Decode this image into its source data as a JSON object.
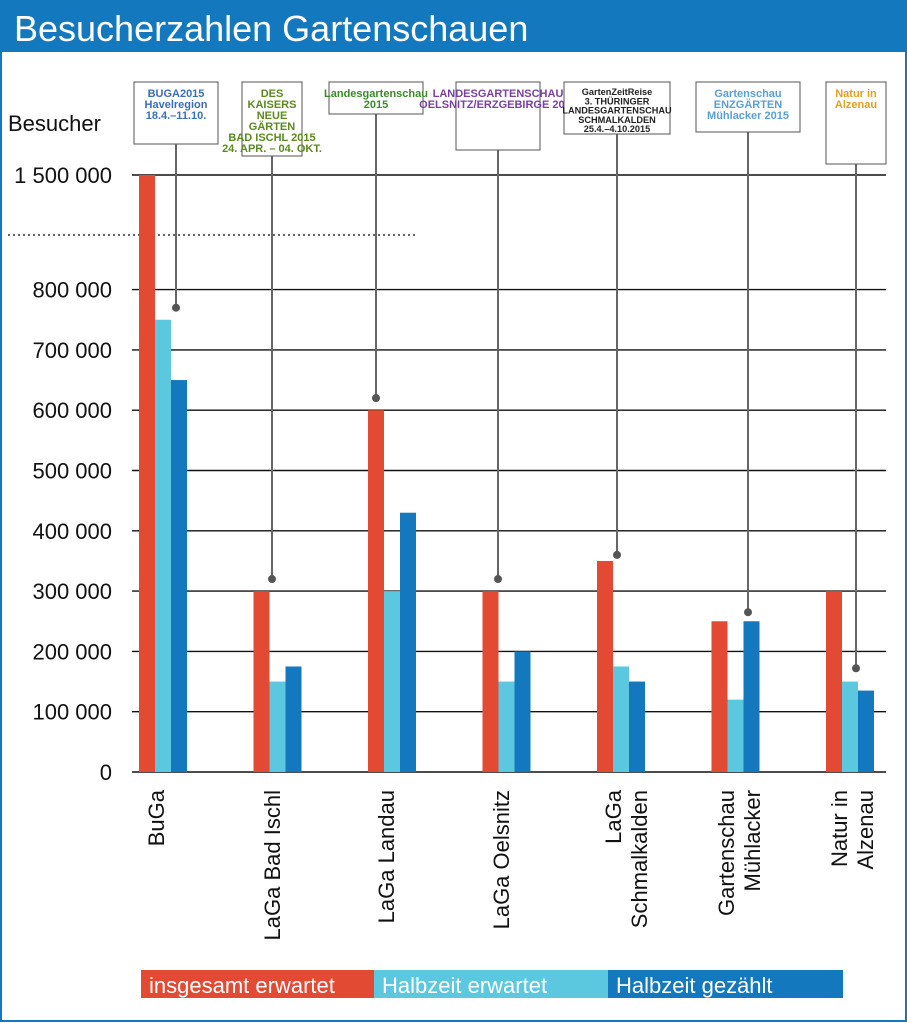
{
  "title": "Besucherzahlen Gartenschauen",
  "colors": {
    "header": "#1478be",
    "insgesamt_erwartet": "#e24a33",
    "halbzeit_erwartet": "#5bc8e0",
    "halbzeit_gezaehlt": "#1478be"
  },
  "chart_data": {
    "type": "bar",
    "ylabel": "Besucher",
    "y_ticks": [
      "0",
      "100000",
      "200000",
      "300000",
      "400000",
      "500000",
      "600000",
      "700000",
      "800000",
      "1500000"
    ],
    "axis_break": "800000–1500000",
    "ylim": [
      0,
      1500000
    ],
    "grid": true,
    "legend_placement": "bottom",
    "categories": [
      [
        "BuGa"
      ],
      [
        "LaGa Bad Ischl"
      ],
      [
        "LaGa Landau"
      ],
      [
        "LaGa Oelsnitz"
      ],
      [
        "LaGa",
        "Schmalkalden"
      ],
      [
        "Gartenschau",
        "Mühlacker"
      ],
      [
        "Natur in",
        "Alzenau"
      ]
    ],
    "series": [
      {
        "name": "insgesamt erwartet",
        "values": [
          1500000,
          300000,
          600000,
          300000,
          350000,
          250000,
          300000
        ]
      },
      {
        "name": "Halbzeit erwartet",
        "values": [
          750000,
          150000,
          300000,
          150000,
          175000,
          120000,
          150000
        ]
      },
      {
        "name": "Halbzeit gezählt",
        "values": [
          650000,
          175000,
          430000,
          200000,
          150000,
          250000,
          135000
        ]
      }
    ]
  },
  "logos": [
    {
      "lines": [
        "BUGA2015",
        "Havelregion",
        "18.4.–11.10."
      ]
    },
    {
      "lines": [
        "DES",
        "KAISERS",
        "NEUE",
        "GÄRTEN",
        "BAD ISCHL 2015",
        "24. APR. – 04. OKT."
      ]
    },
    {
      "lines": [
        "Landesgartenschau",
        "2015"
      ]
    },
    {
      "lines": [
        "LANDESGARTENSCHAU",
        "OELSNITZ/ERZGEBIRGE 2015"
      ]
    },
    {
      "lines": [
        "GartenZeitReise",
        "3. THÜRINGER",
        "LANDESGARTENSCHAU",
        "SCHMALKALDEN",
        "25.4.–4.10.2015"
      ]
    },
    {
      "lines": [
        "Gartenschau",
        "ENZGÄRTEN",
        "Mühlacker 2015"
      ]
    },
    {
      "lines": [
        "Natur in",
        "Alzenau"
      ]
    }
  ]
}
